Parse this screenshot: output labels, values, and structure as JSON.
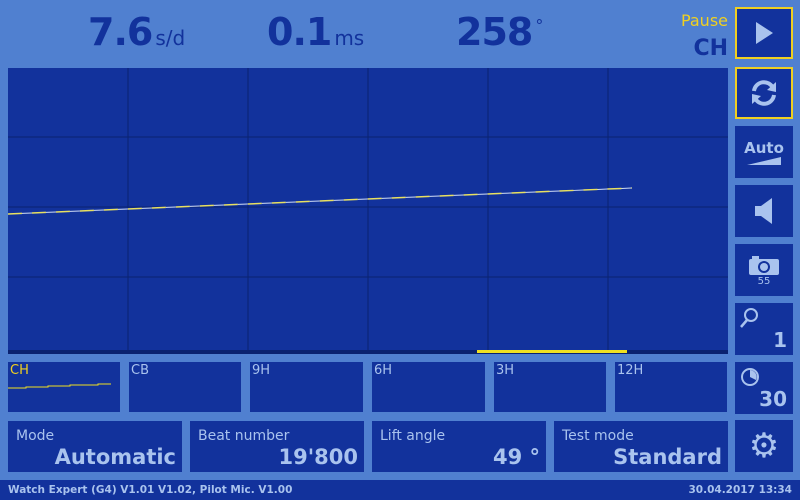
{
  "readings": {
    "rate": "7.6",
    "rate_unit": "s/d",
    "beat_error": "0.1",
    "beat_error_unit": "ms",
    "amplitude": "258",
    "amplitude_unit": "°"
  },
  "status": {
    "state": "Pause",
    "position": "CH"
  },
  "side_buttons": {
    "auto": "Auto",
    "camera_count": "55",
    "zoom": "1",
    "timer": "30"
  },
  "channels": [
    "CH",
    "CB",
    "9H",
    "6H",
    "3H",
    "12H"
  ],
  "info": [
    {
      "label": "Mode",
      "value": "Automatic"
    },
    {
      "label": "Beat number",
      "value": "19'800"
    },
    {
      "label": "Lift angle",
      "value": "49 °"
    },
    {
      "label": "Test mode",
      "value": "Standard"
    }
  ],
  "footer": {
    "version": "Watch Expert (G4) V1.01 V1.02, Pilot Mic. V1.00",
    "datetime": "30.04.2017 13:34"
  },
  "colors": {
    "background": "#5080d0",
    "panel": "#12329c",
    "trace": "#f0e020",
    "accent": "#f0d020",
    "text": "#a9c3ee"
  }
}
